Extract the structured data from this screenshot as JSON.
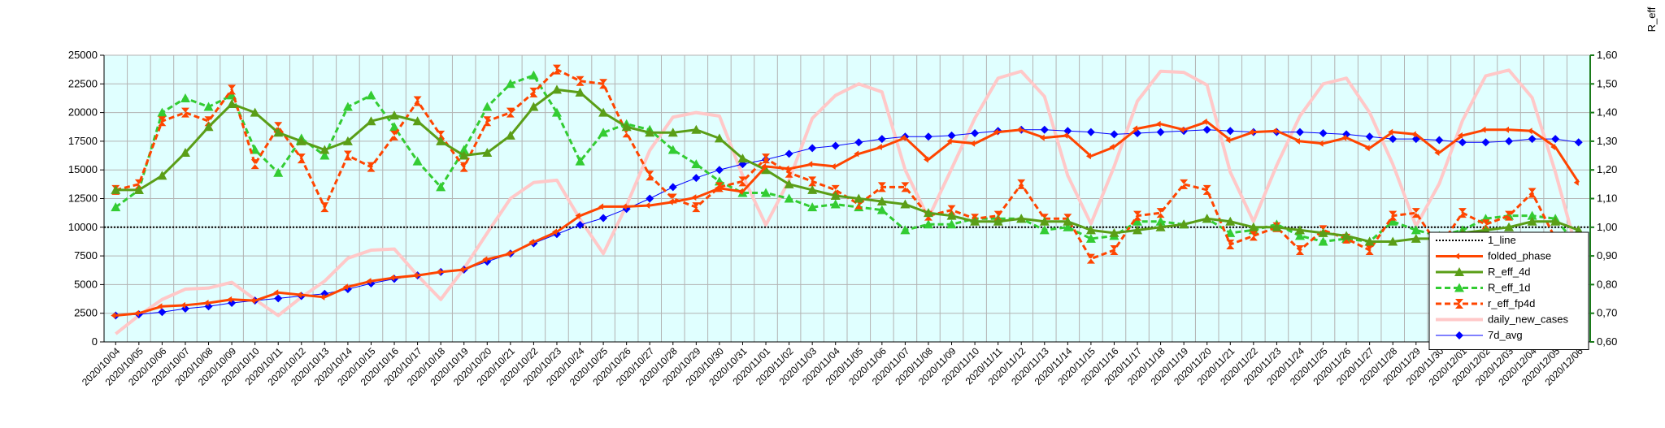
{
  "chart_data": {
    "type": "line",
    "title": "",
    "y_right_label": "R_eff",
    "ylim_left": [
      0,
      25000
    ],
    "ylim_right": [
      0.6,
      1.6
    ],
    "yticks_left": [
      "0",
      "2500",
      "5000",
      "7500",
      "10000",
      "12500",
      "15000",
      "17500",
      "20000",
      "22500",
      "25000"
    ],
    "yticks_right": [
      "0,60",
      "0,70",
      "0,80",
      "0,90",
      "1,00",
      "1,10",
      "1,20",
      "1,30",
      "1,40",
      "1,50",
      "1,60"
    ],
    "grid": true,
    "legend_position": "bottom-right",
    "x": [
      "2020/10/04",
      "2020/10/05",
      "2020/10/06",
      "2020/10/07",
      "2020/10/08",
      "2020/10/09",
      "2020/10/10",
      "2020/10/11",
      "2020/10/12",
      "2020/10/13",
      "2020/10/14",
      "2020/10/15",
      "2020/10/16",
      "2020/10/17",
      "2020/10/18",
      "2020/10/19",
      "2020/10/20",
      "2020/10/21",
      "2020/10/22",
      "2020/10/23",
      "2020/10/24",
      "2020/10/25",
      "2020/10/26",
      "2020/10/27",
      "2020/10/28",
      "2020/10/29",
      "2020/10/30",
      "2020/10/31",
      "2020/11/01",
      "2020/11/02",
      "2020/11/03",
      "2020/11/04",
      "2020/11/05",
      "2020/11/06",
      "2020/11/07",
      "2020/11/08",
      "2020/11/09",
      "2020/11/10",
      "2020/11/11",
      "2020/11/12",
      "2020/11/13",
      "2020/11/14",
      "2020/11/15",
      "2020/11/16",
      "2020/11/17",
      "2020/11/18",
      "2020/11/19",
      "2020/11/20",
      "2020/11/21",
      "2020/11/22",
      "2020/11/23",
      "2020/11/24",
      "2020/11/25",
      "2020/11/26",
      "2020/11/27",
      "2020/11/28",
      "2020/11/29",
      "2020/11/30",
      "2020/12/01",
      "2020/12/02",
      "2020/12/03",
      "2020/12/04",
      "2020/12/05",
      "2020/12/06"
    ],
    "series": [
      {
        "name": "1_line",
        "axis": "right",
        "color": "#000000",
        "style": "dotted",
        "marker": "none",
        "values": [
          1,
          1,
          1,
          1,
          1,
          1,
          1,
          1,
          1,
          1,
          1,
          1,
          1,
          1,
          1,
          1,
          1,
          1,
          1,
          1,
          1,
          1,
          1,
          1,
          1,
          1,
          1,
          1,
          1,
          1,
          1,
          1,
          1,
          1,
          1,
          1,
          1,
          1,
          1,
          1,
          1,
          1,
          1,
          1,
          1,
          1,
          1,
          1,
          1,
          1,
          1,
          1,
          1,
          1,
          1,
          1,
          1,
          1,
          1,
          1,
          1,
          1,
          1,
          1
        ]
      },
      {
        "name": "folded_phase",
        "axis": "left",
        "color": "#ff4500",
        "style": "solid",
        "width": 3,
        "marker": "arrow",
        "values": [
          2300,
          2500,
          3100,
          3200,
          3400,
          3700,
          3600,
          4300,
          4100,
          3900,
          4800,
          5300,
          5600,
          5800,
          6100,
          6300,
          7200,
          7700,
          8700,
          9600,
          11000,
          11800,
          11800,
          11900,
          12200,
          12600,
          13400,
          13100,
          15300,
          15100,
          15500,
          15300,
          16400,
          17000,
          17800,
          15900,
          17500,
          17300,
          18300,
          18500,
          17800,
          18000,
          16200,
          17000,
          18600,
          19000,
          18500,
          19200,
          17600,
          18300,
          18400,
          17500,
          17300,
          17800,
          16900,
          18300,
          18100,
          16500,
          18000,
          18500,
          18500,
          18400,
          17000,
          13900
        ]
      },
      {
        "name": "R_eff_4d",
        "axis": "right",
        "color": "#5a9e17",
        "style": "solid",
        "width": 3,
        "marker": "triangle",
        "values": [
          1.13,
          1.13,
          1.18,
          1.26,
          1.35,
          1.43,
          1.4,
          1.33,
          1.3,
          1.27,
          1.3,
          1.37,
          1.39,
          1.37,
          1.3,
          1.25,
          1.26,
          1.32,
          1.42,
          1.48,
          1.47,
          1.4,
          1.35,
          1.33,
          1.33,
          1.34,
          1.31,
          1.24,
          1.2,
          1.15,
          1.13,
          1.11,
          1.1,
          1.09,
          1.08,
          1.05,
          1.04,
          1.02,
          1.02,
          1.03,
          1.02,
          1.02,
          0.99,
          0.98,
          0.99,
          1.0,
          1.01,
          1.03,
          1.02,
          1.0,
          1.0,
          0.99,
          0.98,
          0.97,
          0.95,
          0.95,
          0.96,
          0.96,
          0.98,
          0.99,
          1.0,
          1.02,
          1.02,
          0.99
        ]
      },
      {
        "name": "R_eff_1d",
        "axis": "right",
        "color": "#33cc33",
        "style": "dashed",
        "width": 3,
        "marker": "triangle",
        "values": [
          1.07,
          1.13,
          1.4,
          1.45,
          1.42,
          1.46,
          1.27,
          1.19,
          1.31,
          1.25,
          1.42,
          1.46,
          1.35,
          1.23,
          1.14,
          1.27,
          1.42,
          1.5,
          1.53,
          1.4,
          1.23,
          1.33,
          1.36,
          1.34,
          1.27,
          1.22,
          1.16,
          1.12,
          1.12,
          1.1,
          1.07,
          1.08,
          1.07,
          1.06,
          0.99,
          1.01,
          1.01,
          1.03,
          1.03,
          1.03,
          0.99,
          1.0,
          0.96,
          0.97,
          1.02,
          1.02,
          1.01,
          1.03,
          0.98,
          0.99,
          1.01,
          0.97,
          0.95,
          0.96,
          0.95,
          1.02,
          0.99,
          0.97,
          0.99,
          1.03,
          1.04,
          1.04,
          1.03,
          0.93
        ]
      },
      {
        "name": "r_eff_fp4d",
        "axis": "right",
        "color": "#ff4500",
        "style": "dashed",
        "width": 3,
        "marker": "bowtie",
        "values": [
          1.13,
          1.15,
          1.37,
          1.4,
          1.37,
          1.48,
          1.22,
          1.35,
          1.24,
          1.07,
          1.25,
          1.21,
          1.32,
          1.44,
          1.32,
          1.21,
          1.37,
          1.4,
          1.47,
          1.55,
          1.51,
          1.5,
          1.33,
          1.18,
          1.1,
          1.07,
          1.14,
          1.16,
          1.24,
          1.19,
          1.16,
          1.13,
          1.08,
          1.14,
          1.14,
          1.04,
          1.06,
          1.03,
          1.04,
          1.15,
          1.03,
          1.03,
          0.89,
          0.92,
          1.04,
          1.05,
          1.15,
          1.13,
          0.94,
          0.97,
          1.0,
          0.92,
          0.99,
          0.96,
          0.92,
          1.04,
          1.05,
          0.93,
          1.05,
          1.01,
          1.04,
          1.12,
          0.96,
          0.74
        ]
      },
      {
        "name": "daily_new_cases",
        "axis": "left",
        "color": "#ffc8c8",
        "style": "solid",
        "width": 4,
        "marker": "none",
        "values": [
          700,
          2300,
          3700,
          4600,
          4700,
          5200,
          3700,
          2300,
          3900,
          5300,
          7300,
          8000,
          8100,
          5800,
          3700,
          6400,
          9500,
          12500,
          13900,
          14100,
          10700,
          7700,
          11900,
          16700,
          19600,
          20000,
          19700,
          14500,
          10200,
          14100,
          19500,
          21500,
          22500,
          21800,
          15000,
          10800,
          15100,
          19500,
          23000,
          23600,
          21400,
          14500,
          10300,
          15300,
          21000,
          23600,
          23500,
          22400,
          14800,
          10500,
          15400,
          19700,
          22500,
          23000,
          20000,
          15500,
          10100,
          13800,
          19300,
          23200,
          23700,
          21300,
          14800,
          7400
        ]
      },
      {
        "name": "7d_avg",
        "axis": "left",
        "color": "#0000ff",
        "style": "solid",
        "width": 1,
        "marker": "diamond",
        "values": [
          2300,
          2400,
          2600,
          2900,
          3100,
          3400,
          3600,
          3800,
          4000,
          4200,
          4600,
          5100,
          5500,
          5800,
          6100,
          6300,
          7000,
          7700,
          8600,
          9400,
          10200,
          10800,
          11600,
          12500,
          13500,
          14300,
          15000,
          15500,
          15900,
          16400,
          16900,
          17100,
          17400,
          17700,
          17900,
          17900,
          18000,
          18200,
          18400,
          18500,
          18500,
          18400,
          18300,
          18100,
          18200,
          18300,
          18400,
          18500,
          18400,
          18300,
          18300,
          18300,
          18200,
          18100,
          17900,
          17700,
          17700,
          17600,
          17400,
          17400,
          17500,
          17700,
          17700,
          17400
        ]
      }
    ]
  }
}
